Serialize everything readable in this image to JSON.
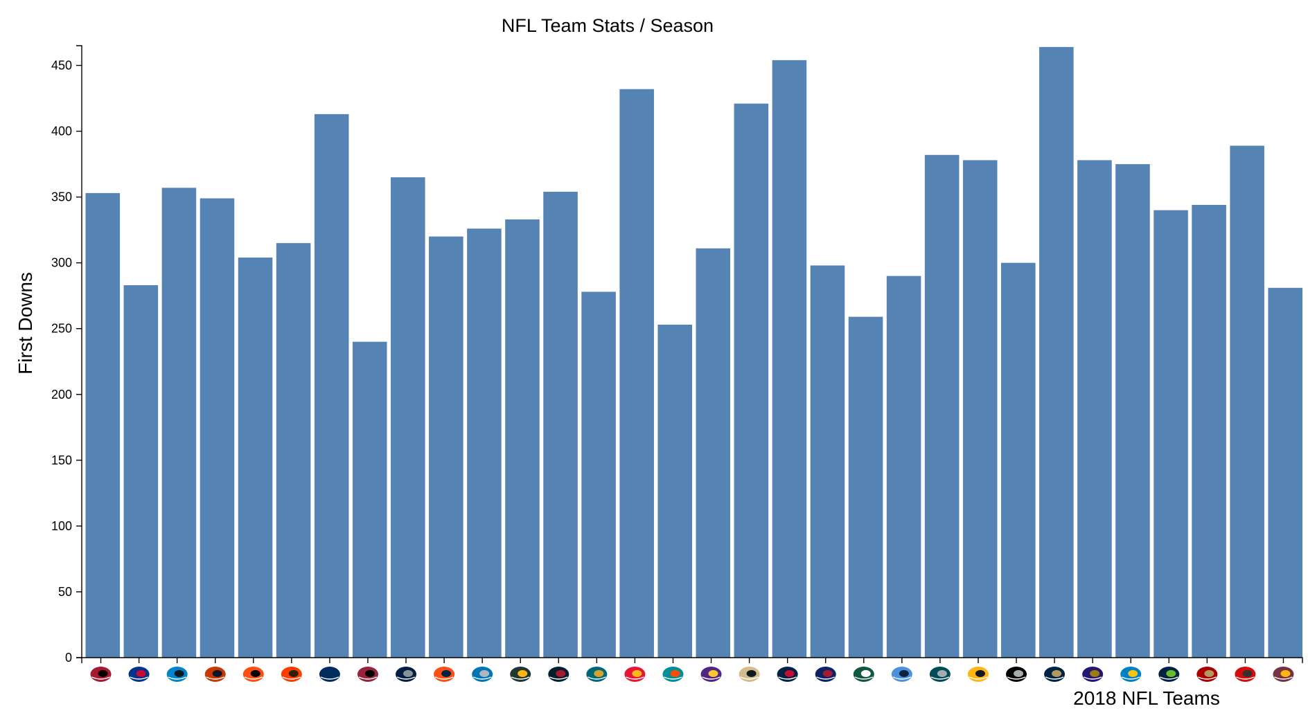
{
  "chart_data": {
    "type": "bar",
    "title": "NFL Team Stats / Season",
    "xlabel": "2018 NFL Teams",
    "ylabel": "First Downs",
    "ylim": [
      0,
      465
    ],
    "yticks": [
      0,
      50,
      100,
      150,
      200,
      250,
      300,
      350,
      400,
      450
    ],
    "grid": false,
    "bar_color": "#5583b4",
    "categories": [
      "ATL",
      "BUF",
      "CAR",
      "CHI",
      "CIN",
      "CLE",
      "IND",
      "ARI",
      "DAL",
      "DEN",
      "DET",
      "GB",
      "HOU",
      "JAX",
      "KC",
      "MIA",
      "MIN",
      "NO",
      "NE",
      "NYG",
      "NYJ",
      "TEN",
      "PHI",
      "PIT",
      "OAK",
      "LAR",
      "BAL",
      "LAC",
      "SEA",
      "SF",
      "TB",
      "WAS"
    ],
    "values": [
      353,
      283,
      357,
      349,
      304,
      315,
      413,
      240,
      365,
      320,
      326,
      333,
      354,
      278,
      432,
      253,
      311,
      421,
      454,
      298,
      259,
      290,
      382,
      378,
      300,
      464,
      378,
      375,
      340,
      344,
      389,
      281
    ],
    "team_logo_colors": [
      {
        "primary": "#a71930",
        "secondary": "#000000"
      },
      {
        "primary": "#00338d",
        "secondary": "#c60c30"
      },
      {
        "primary": "#0085ca",
        "secondary": "#101820"
      },
      {
        "primary": "#c83803",
        "secondary": "#0b162a"
      },
      {
        "primary": "#fb4f14",
        "secondary": "#000000"
      },
      {
        "primary": "#ff3c00",
        "secondary": "#311d00"
      },
      {
        "primary": "#002c5f",
        "secondary": "#002c5f"
      },
      {
        "primary": "#97233f",
        "secondary": "#000000"
      },
      {
        "primary": "#041e42",
        "secondary": "#869397"
      },
      {
        "primary": "#fb4f14",
        "secondary": "#002244"
      },
      {
        "primary": "#0076b6",
        "secondary": "#b0b7bc"
      },
      {
        "primary": "#203731",
        "secondary": "#ffb612"
      },
      {
        "primary": "#03202f",
        "secondary": "#a71930"
      },
      {
        "primary": "#006778",
        "secondary": "#d7a22a"
      },
      {
        "primary": "#e31837",
        "secondary": "#ffb81c"
      },
      {
        "primary": "#008e97",
        "secondary": "#fc4c02"
      },
      {
        "primary": "#4f2683",
        "secondary": "#ffc62f"
      },
      {
        "primary": "#d3bc8d",
        "secondary": "#101820"
      },
      {
        "primary": "#002244",
        "secondary": "#c60c30"
      },
      {
        "primary": "#0b2265",
        "secondary": "#a71930"
      },
      {
        "primary": "#125740",
        "secondary": "#ffffff"
      },
      {
        "primary": "#4b92db",
        "secondary": "#0c2340"
      },
      {
        "primary": "#004c54",
        "secondary": "#a5acaf"
      },
      {
        "primary": "#ffb612",
        "secondary": "#101820"
      },
      {
        "primary": "#000000",
        "secondary": "#a5acaf"
      },
      {
        "primary": "#002244",
        "secondary": "#b3995d"
      },
      {
        "primary": "#241773",
        "secondary": "#9e7c0c"
      },
      {
        "primary": "#0080c6",
        "secondary": "#ffc20e"
      },
      {
        "primary": "#002244",
        "secondary": "#69be28"
      },
      {
        "primary": "#aa0000",
        "secondary": "#b3995d"
      },
      {
        "primary": "#d50a0a",
        "secondary": "#34302b"
      },
      {
        "primary": "#773141",
        "secondary": "#ffb612"
      }
    ]
  }
}
